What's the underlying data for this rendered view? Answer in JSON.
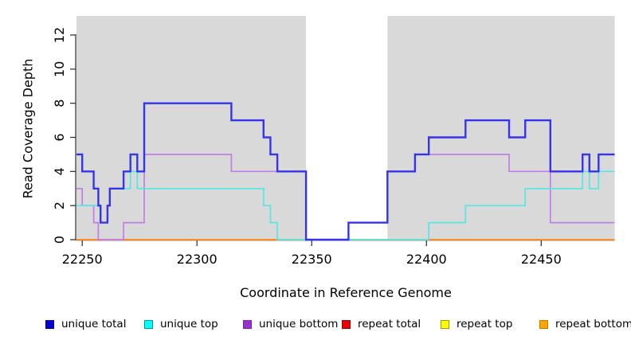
{
  "chart_data": {
    "type": "line",
    "step": true,
    "title": "",
    "xlabel": "Coordinate in Reference Genome",
    "ylabel": "Read Coverage Depth",
    "xlim": [
      22247.5,
      22482
    ],
    "ylim": [
      0,
      13.1
    ],
    "x_ticks": [
      22250,
      22300,
      22350,
      22400,
      22450
    ],
    "y_ticks": [
      0,
      2,
      4,
      6,
      8,
      10,
      12
    ],
    "grid": false,
    "legend_position": "bottom",
    "background": {
      "plot_fill": "#d9d9d9",
      "gap_band_x": [
        22347.5,
        22383
      ],
      "gap_fill": "#ffffff"
    },
    "axis_color": "#2a2a2a",
    "draw_order": [
      3,
      4,
      5,
      2,
      1,
      0
    ],
    "series": [
      {
        "name": "unique total",
        "slug": "unique-total",
        "color": "#3434ee",
        "width": 2.4,
        "legend_fill": "#0000cd",
        "legend_border": "#0000a8",
        "x_end": 22482,
        "steps": [
          [
            22247.5,
            5
          ],
          [
            22250,
            4
          ],
          [
            22255,
            3
          ],
          [
            22257,
            2
          ],
          [
            22258,
            1
          ],
          [
            22261,
            2
          ],
          [
            22262,
            3
          ],
          [
            22268,
            4
          ],
          [
            22271,
            5
          ],
          [
            22274,
            4
          ],
          [
            22277,
            8
          ],
          [
            22315,
            7
          ],
          [
            22329,
            6
          ],
          [
            22332,
            5
          ],
          [
            22335,
            4
          ],
          [
            22347.5,
            0
          ],
          [
            22366,
            1
          ],
          [
            22383,
            4
          ],
          [
            22395,
            5
          ],
          [
            22401,
            6
          ],
          [
            22417,
            7
          ],
          [
            22436,
            6
          ],
          [
            22443,
            7
          ],
          [
            22454,
            4
          ],
          [
            22468,
            5
          ],
          [
            22471,
            4
          ],
          [
            22475,
            5
          ]
        ]
      },
      {
        "name": "unique top",
        "slug": "unique-top",
        "color": "#55e6e6",
        "width": 1.7,
        "legend_fill": "#00ffff",
        "legend_border": "#009999",
        "x_end": 22482,
        "steps": [
          [
            22247.5,
            2
          ],
          [
            22258,
            1
          ],
          [
            22261,
            2
          ],
          [
            22262,
            3
          ],
          [
            22271,
            4
          ],
          [
            22274,
            3
          ],
          [
            22329,
            2
          ],
          [
            22332,
            1
          ],
          [
            22335,
            0
          ],
          [
            22401,
            1
          ],
          [
            22417,
            2
          ],
          [
            22443,
            3
          ],
          [
            22468,
            4
          ],
          [
            22471,
            3
          ],
          [
            22475,
            4
          ]
        ]
      },
      {
        "name": "unique bottom",
        "slug": "unique-bottom",
        "color": "#c07fe6",
        "width": 1.7,
        "legend_fill": "#9932cc",
        "legend_border": "#7a28a3",
        "x_end": 22482,
        "steps": [
          [
            22247.5,
            3
          ],
          [
            22250,
            2
          ],
          [
            22255,
            1
          ],
          [
            22257,
            0
          ],
          [
            22268,
            1
          ],
          [
            22277,
            5
          ],
          [
            22315,
            4
          ],
          [
            22347.5,
            0
          ],
          [
            22366,
            1
          ],
          [
            22383,
            4
          ],
          [
            22395,
            5
          ],
          [
            22436,
            4
          ],
          [
            22454,
            1
          ]
        ]
      },
      {
        "name": "repeat total",
        "slug": "repeat-total",
        "color": "#dd0000",
        "width": 1.7,
        "legend_fill": "#ee0000",
        "legend_border": "#990000",
        "x_end": 22482,
        "steps": [
          [
            22247.5,
            0
          ]
        ]
      },
      {
        "name": "repeat top",
        "slug": "repeat-top",
        "color": "#ffff33",
        "width": 1.7,
        "legend_fill": "#ffff00",
        "legend_border": "#9a9a00",
        "x_end": 22482,
        "steps": [
          [
            22247.5,
            0
          ]
        ]
      },
      {
        "name": "repeat bottom",
        "slug": "repeat-bottom",
        "color": "#ff8c1e",
        "width": 2,
        "legend_fill": "#ffa500",
        "legend_border": "#c27a00",
        "x_end": 22482,
        "steps": [
          [
            22247.5,
            0
          ]
        ]
      }
    ]
  }
}
